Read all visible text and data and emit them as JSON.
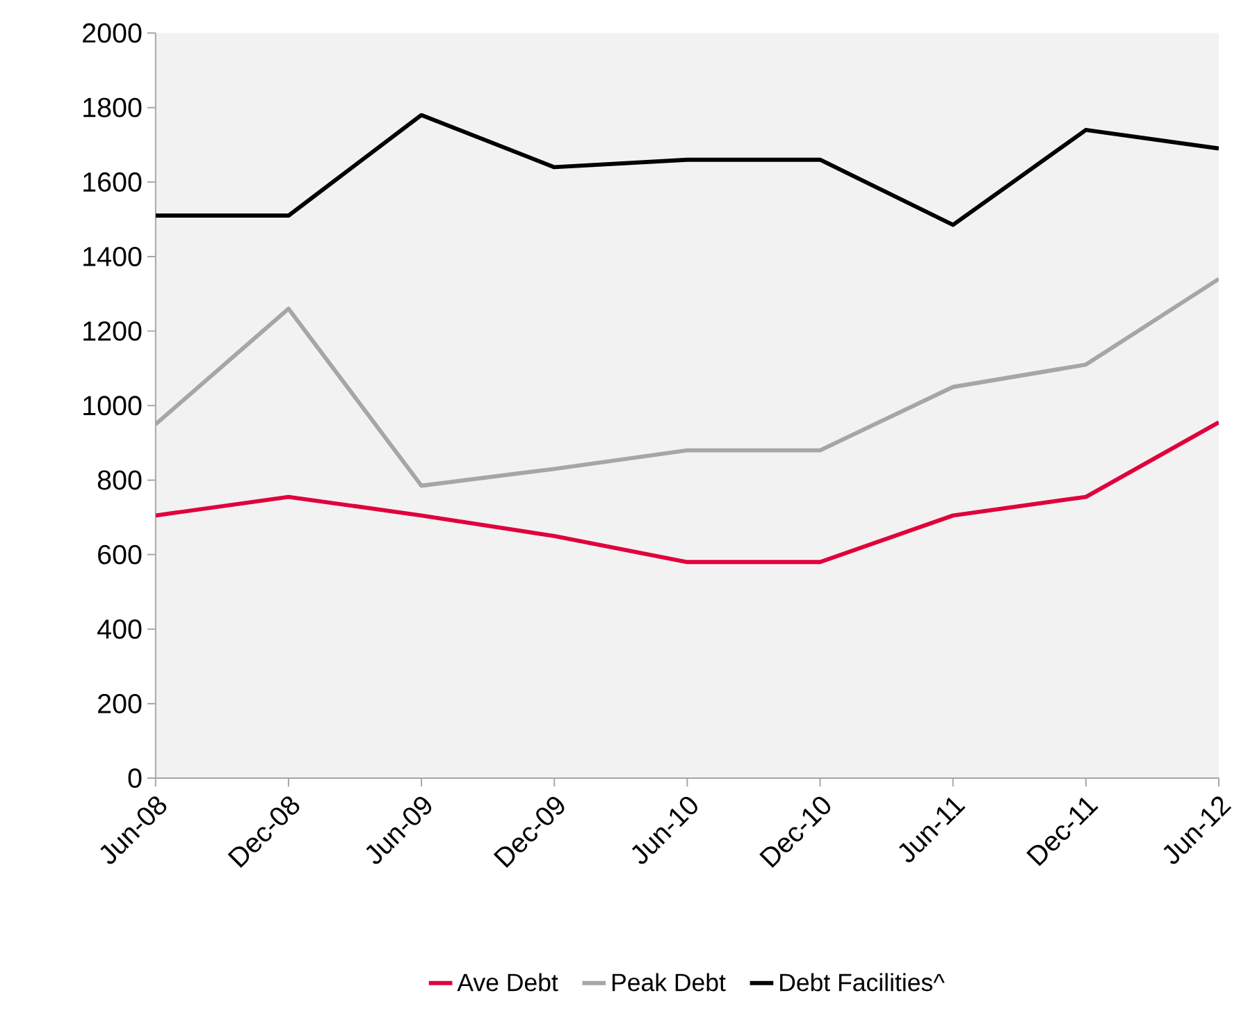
{
  "chart_data": {
    "type": "line",
    "categories": [
      "Jun-08",
      "Dec-08",
      "Jun-09",
      "Dec-09",
      "Jun-10",
      "Dec-10",
      "Jun-11",
      "Dec-11",
      "Jun-12"
    ],
    "series": [
      {
        "name": "Ave Debt",
        "color": "#e0003c",
        "values": [
          705,
          755,
          705,
          650,
          580,
          580,
          705,
          755,
          955
        ]
      },
      {
        "name": "Peak Debt",
        "color": "#a6a6a6",
        "values": [
          950,
          1260,
          785,
          830,
          880,
          880,
          1050,
          1110,
          1340
        ]
      },
      {
        "name": "Debt Facilities^",
        "color": "#000000",
        "values": [
          1510,
          1510,
          1780,
          1640,
          1660,
          1660,
          1485,
          1740,
          1690
        ]
      }
    ],
    "ylim": [
      0,
      2000
    ],
    "yticks": [
      0,
      200,
      400,
      600,
      800,
      1000,
      1200,
      1400,
      1600,
      1800,
      2000
    ],
    "legend": "bottom",
    "grid": false,
    "marker": "none",
    "line_style": "solid"
  }
}
